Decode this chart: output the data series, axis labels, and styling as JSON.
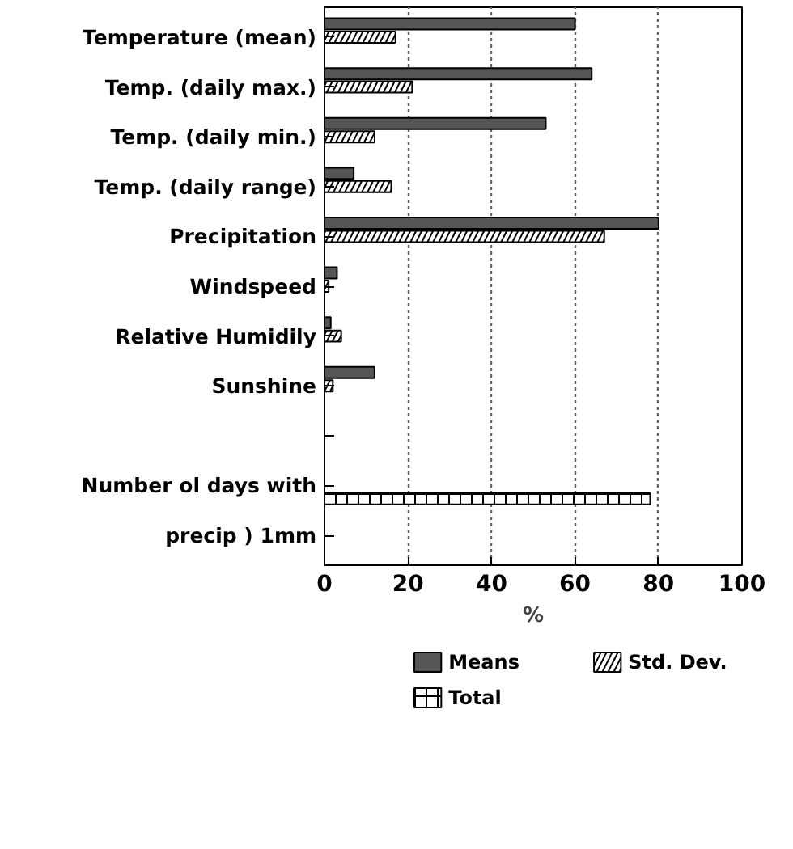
{
  "chart_data": {
    "type": "bar",
    "orientation": "horizontal",
    "xlabel": "%",
    "categories": [
      "Temperature (mean)",
      "Temp. (daily max.)",
      "Temp. (daily min.)",
      "Temp. (daily range)",
      "Precipitation",
      "Windspeed",
      "Relative Humidily",
      "Sunshine",
      null,
      "Number ol days with",
      "precip ) 1mm"
    ],
    "series": [
      {
        "name": "Means",
        "color": "#555555",
        "values": [
          60,
          64,
          53,
          7,
          80,
          3,
          1.5,
          12,
          null,
          null,
          null
        ]
      },
      {
        "name": "Std. Dev.",
        "color": "#ffffff",
        "values": [
          17,
          21,
          12,
          16,
          67,
          1,
          4,
          2,
          null,
          null,
          null
        ]
      },
      {
        "name": "Total",
        "color": "#ffffff",
        "values": [
          null,
          null,
          null,
          null,
          null,
          null,
          null,
          null,
          null,
          78,
          null
        ]
      }
    ],
    "xlim": [
      0,
      100
    ],
    "xticks": [
      0,
      20,
      40,
      60,
      80,
      100
    ],
    "grid": "x",
    "legend": "bottom"
  }
}
